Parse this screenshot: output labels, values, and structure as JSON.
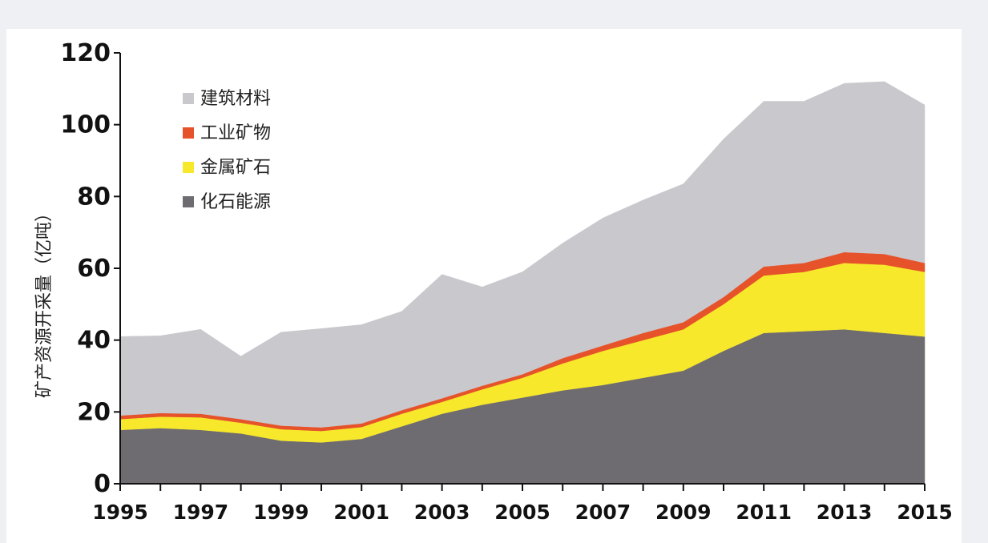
{
  "chart_data": {
    "type": "area",
    "stacked": true,
    "title": "",
    "xlabel": "",
    "ylabel": "矿产资源开采量（亿吨）",
    "xlim": [
      1995,
      2015
    ],
    "ylim": [
      0,
      120
    ],
    "x": [
      1995,
      1996,
      1997,
      1998,
      1999,
      2000,
      2001,
      2002,
      2003,
      2004,
      2005,
      2006,
      2007,
      2008,
      2009,
      2010,
      2011,
      2012,
      2013,
      2014,
      2015
    ],
    "x_tick_labels": [
      "1995",
      "1997",
      "1999",
      "2001",
      "2003",
      "2005",
      "2007",
      "2009",
      "2011",
      "2013",
      "2015"
    ],
    "y_ticks": [
      0,
      20,
      40,
      60,
      80,
      100,
      120
    ],
    "grid": false,
    "legend_position": "top-left",
    "series": [
      {
        "name": "化石能源",
        "color": "#6e6c71",
        "values": [
          15,
          15.5,
          15,
          14,
          12,
          11.5,
          12.5,
          16,
          19.5,
          22,
          24,
          26,
          27.5,
          29.5,
          31.5,
          37,
          42,
          42.5,
          43,
          42,
          41
        ]
      },
      {
        "name": "金属矿石",
        "color": "#f7e82b",
        "values": [
          3,
          3.2,
          3.5,
          3,
          3.2,
          3.2,
          3.3,
          3.5,
          3.3,
          4.3,
          5.5,
          7.5,
          9.5,
          10.5,
          11.5,
          13,
          16,
          16.5,
          18.5,
          19,
          18
        ]
      },
      {
        "name": "工业矿物",
        "color": "#e6532a",
        "values": [
          1,
          1,
          1,
          1,
          1,
          1,
          1,
          1,
          1,
          1,
          1,
          1.5,
          1.5,
          2,
          2,
          2,
          2.5,
          2.5,
          3,
          3,
          2.5
        ]
      },
      {
        "name": "建筑材料",
        "color": "#c9c8cd",
        "values": [
          22,
          21.5,
          23.5,
          17.5,
          26,
          27.5,
          27.5,
          27.5,
          34.5,
          27.5,
          28.5,
          32,
          35.5,
          37,
          38.5,
          44,
          46,
          45,
          47,
          48,
          44
        ]
      }
    ],
    "legend_order": [
      "建筑材料",
      "工业矿物",
      "金属矿石",
      "化石能源"
    ]
  }
}
